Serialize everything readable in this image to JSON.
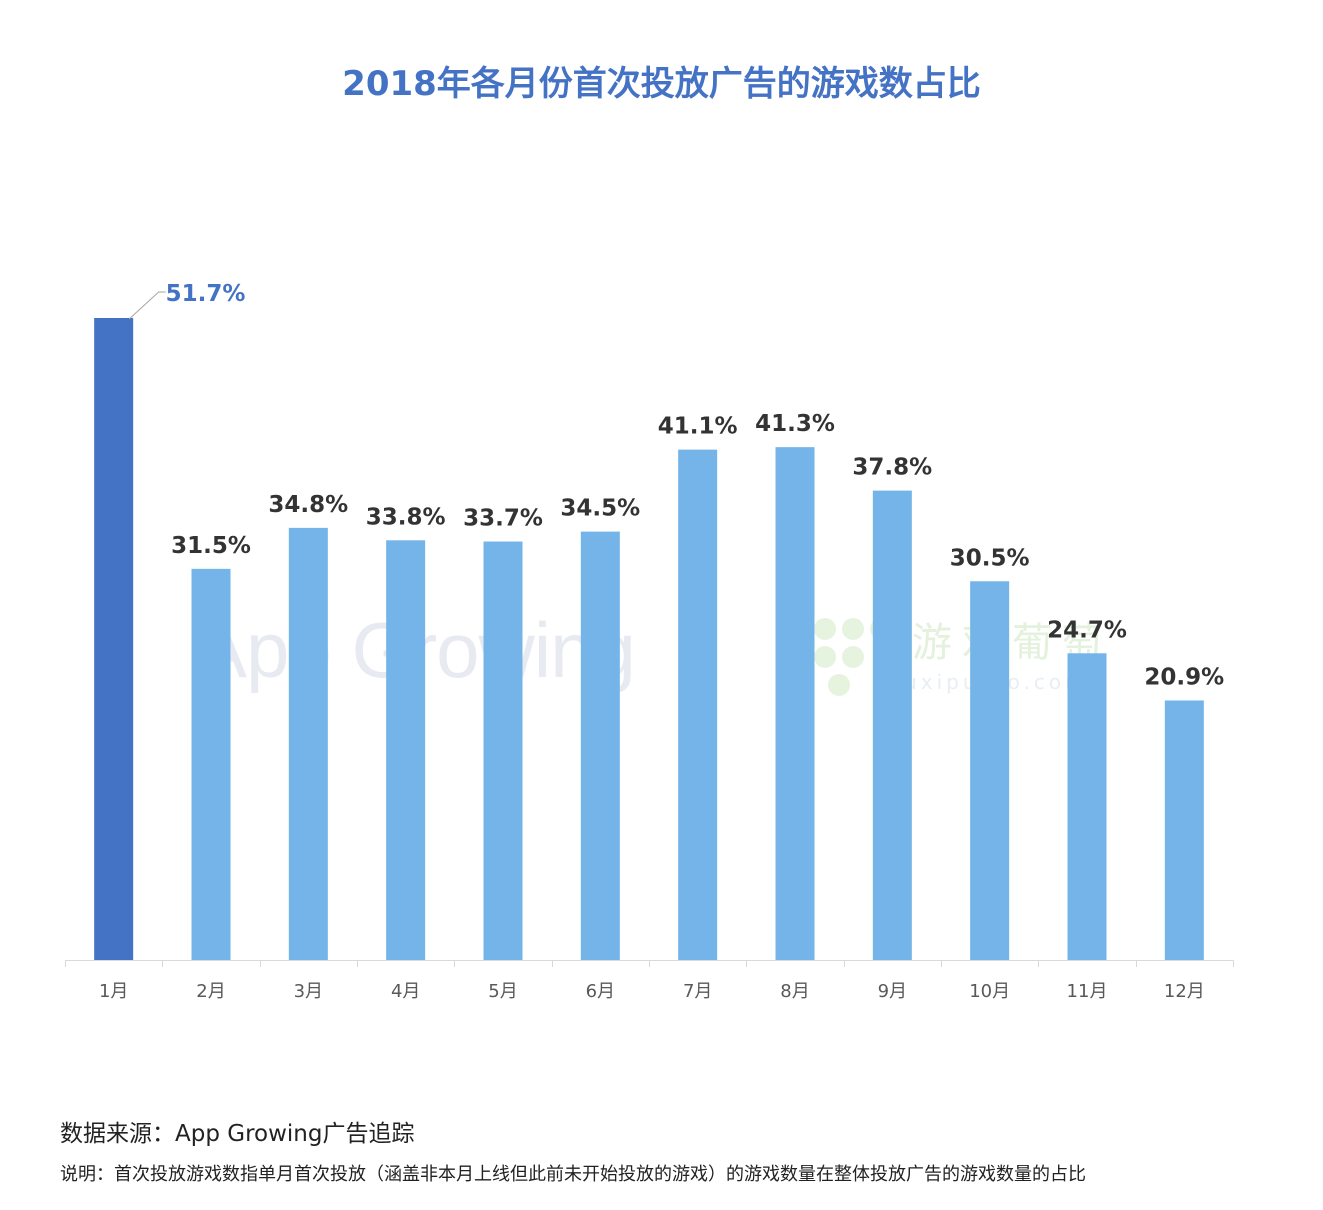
{
  "chart_data": {
    "type": "bar",
    "title": "2018年各月份首次投放广告的游戏数占比",
    "categories": [
      "1月",
      "2月",
      "3月",
      "4月",
      "5月",
      "6月",
      "7月",
      "8月",
      "9月",
      "10月",
      "11月",
      "12月"
    ],
    "values": [
      51.7,
      31.5,
      34.8,
      33.8,
      33.7,
      34.5,
      41.1,
      41.3,
      37.8,
      30.5,
      24.7,
      20.9
    ],
    "value_labels": [
      "51.7%",
      "31.5%",
      "34.8%",
      "33.8%",
      "33.7%",
      "34.5%",
      "41.1%",
      "41.3%",
      "37.8%",
      "30.5%",
      "24.7%",
      "20.9%"
    ],
    "highlight_index": 0,
    "xlabel": "",
    "ylabel": "",
    "ylim": [
      0,
      51.7
    ],
    "grid": false,
    "legend": "none",
    "unit": "%"
  },
  "colors": {
    "title": "#4472C4",
    "highlight_bar": "#4472C4",
    "bar": "#75B4E8",
    "highlight_label": "#4472C4",
    "label": "#333333",
    "axis": "#D9D9D9",
    "tick_label": "#595959"
  },
  "watermarks": {
    "app": "App Growing",
    "youxi_text": "游戏葡萄",
    "youxi_domain": "youxiputao.com"
  },
  "footer": {
    "source": "数据来源：App Growing广告追踪",
    "note": "说明：首次投放游戏数指单月首次投放（涵盖非本月上线但此前未开始投放的游戏）的游戏数量在整体投放广告的游戏数量的占比"
  }
}
